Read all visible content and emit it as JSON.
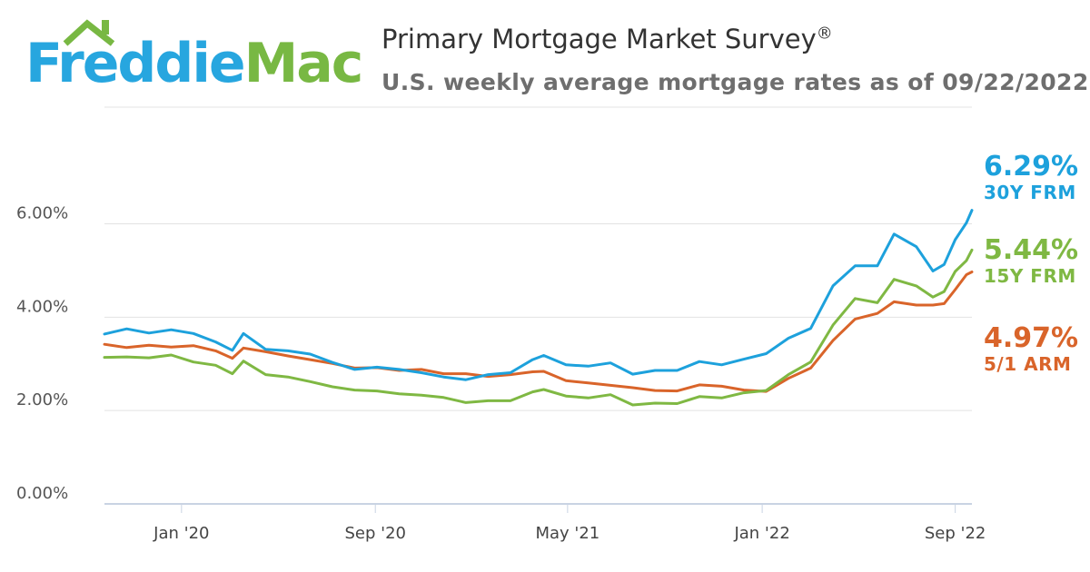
{
  "brand": {
    "name_part1": "Freddie",
    "name_part2": "Mac"
  },
  "header": {
    "title": "Primary Mortgage Market Survey",
    "title_mark": "®",
    "subtitle": "U.S. weekly average mortgage rates as of 09/22/2022"
  },
  "colors": {
    "frm30": "#1da1dc",
    "frm15": "#7fb843",
    "arm51": "#d9642a",
    "grid": "#e3e3e3",
    "axis": "#c9d3e3",
    "logo_blue": "#27a6df",
    "logo_green": "#78b843"
  },
  "chart_data": {
    "type": "line",
    "title": "Primary Mortgage Market Survey",
    "subtitle": "U.S. weekly average mortgage rates as of 09/22/2022",
    "x_range": [
      "2019-09-26",
      "2022-09-22"
    ],
    "x_ticks": [
      {
        "date": "2020-01-01",
        "label": "Jan '20"
      },
      {
        "date": "2020-09-01",
        "label": "Sep '20"
      },
      {
        "date": "2021-05-01",
        "label": "May '21"
      },
      {
        "date": "2022-01-01",
        "label": "Jan '22"
      },
      {
        "date": "2022-09-01",
        "label": "Sep '22"
      }
    ],
    "y_ticks": [
      {
        "value": 0,
        "label": "0.00%"
      },
      {
        "value": 2,
        "label": "2.00%"
      },
      {
        "value": 4,
        "label": "4.00%"
      },
      {
        "value": 6,
        "label": "6.00%"
      }
    ],
    "ylim": [
      0,
      8.5
    ],
    "grid": true,
    "legend": "right",
    "series": [
      {
        "key": "frm30",
        "name": "30Y FRM",
        "last_label": "6.29%",
        "points": [
          [
            "2019-09-26",
            3.64
          ],
          [
            "2019-10-24",
            3.75
          ],
          [
            "2019-11-21",
            3.66
          ],
          [
            "2019-12-19",
            3.73
          ],
          [
            "2020-01-16",
            3.65
          ],
          [
            "2020-02-13",
            3.47
          ],
          [
            "2020-03-05",
            3.29
          ],
          [
            "2020-03-19",
            3.65
          ],
          [
            "2020-04-16",
            3.31
          ],
          [
            "2020-05-14",
            3.28
          ],
          [
            "2020-06-11",
            3.21
          ],
          [
            "2020-07-09",
            3.03
          ],
          [
            "2020-08-06",
            2.88
          ],
          [
            "2020-09-03",
            2.93
          ],
          [
            "2020-10-01",
            2.88
          ],
          [
            "2020-10-29",
            2.81
          ],
          [
            "2020-11-26",
            2.72
          ],
          [
            "2020-12-24",
            2.66
          ],
          [
            "2021-01-21",
            2.77
          ],
          [
            "2021-02-18",
            2.81
          ],
          [
            "2021-03-18",
            3.09
          ],
          [
            "2021-04-01",
            3.18
          ],
          [
            "2021-04-29",
            2.98
          ],
          [
            "2021-05-27",
            2.95
          ],
          [
            "2021-06-24",
            3.02
          ],
          [
            "2021-07-22",
            2.78
          ],
          [
            "2021-08-19",
            2.86
          ],
          [
            "2021-09-16",
            2.86
          ],
          [
            "2021-10-14",
            3.05
          ],
          [
            "2021-11-11",
            2.98
          ],
          [
            "2021-12-09",
            3.1
          ],
          [
            "2022-01-06",
            3.22
          ],
          [
            "2022-02-03",
            3.55
          ],
          [
            "2022-03-03",
            3.76
          ],
          [
            "2022-03-31",
            4.67
          ],
          [
            "2022-04-28",
            5.1
          ],
          [
            "2022-05-26",
            5.1
          ],
          [
            "2022-06-16",
            5.78
          ],
          [
            "2022-07-14",
            5.51
          ],
          [
            "2022-08-04",
            4.99
          ],
          [
            "2022-08-18",
            5.13
          ],
          [
            "2022-09-01",
            5.66
          ],
          [
            "2022-09-15",
            6.02
          ],
          [
            "2022-09-22",
            6.29
          ]
        ]
      },
      {
        "key": "frm15",
        "name": "15Y FRM",
        "last_label": "5.44%",
        "points": [
          [
            "2019-09-26",
            3.14
          ],
          [
            "2019-10-24",
            3.15
          ],
          [
            "2019-11-21",
            3.13
          ],
          [
            "2019-12-19",
            3.19
          ],
          [
            "2020-01-16",
            3.04
          ],
          [
            "2020-02-13",
            2.97
          ],
          [
            "2020-03-05",
            2.79
          ],
          [
            "2020-03-19",
            3.06
          ],
          [
            "2020-04-16",
            2.77
          ],
          [
            "2020-05-14",
            2.72
          ],
          [
            "2020-06-11",
            2.62
          ],
          [
            "2020-07-09",
            2.51
          ],
          [
            "2020-08-06",
            2.44
          ],
          [
            "2020-09-03",
            2.42
          ],
          [
            "2020-10-01",
            2.36
          ],
          [
            "2020-10-29",
            2.33
          ],
          [
            "2020-11-26",
            2.28
          ],
          [
            "2020-12-24",
            2.17
          ],
          [
            "2021-01-21",
            2.21
          ],
          [
            "2021-02-18",
            2.21
          ],
          [
            "2021-03-18",
            2.4
          ],
          [
            "2021-04-01",
            2.45
          ],
          [
            "2021-04-29",
            2.31
          ],
          [
            "2021-05-27",
            2.27
          ],
          [
            "2021-06-24",
            2.34
          ],
          [
            "2021-07-22",
            2.12
          ],
          [
            "2021-08-19",
            2.16
          ],
          [
            "2021-09-16",
            2.15
          ],
          [
            "2021-10-14",
            2.3
          ],
          [
            "2021-11-11",
            2.27
          ],
          [
            "2021-12-09",
            2.38
          ],
          [
            "2022-01-06",
            2.43
          ],
          [
            "2022-02-03",
            2.77
          ],
          [
            "2022-03-03",
            3.04
          ],
          [
            "2022-03-31",
            3.83
          ],
          [
            "2022-04-28",
            4.4
          ],
          [
            "2022-05-26",
            4.31
          ],
          [
            "2022-06-16",
            4.81
          ],
          [
            "2022-07-14",
            4.67
          ],
          [
            "2022-08-04",
            4.43
          ],
          [
            "2022-08-18",
            4.55
          ],
          [
            "2022-09-01",
            4.98
          ],
          [
            "2022-09-15",
            5.21
          ],
          [
            "2022-09-22",
            5.44
          ]
        ]
      },
      {
        "key": "arm51",
        "name": "5/1 ARM",
        "last_label": "4.97%",
        "points": [
          [
            "2019-09-26",
            3.42
          ],
          [
            "2019-10-24",
            3.35
          ],
          [
            "2019-11-21",
            3.4
          ],
          [
            "2019-12-19",
            3.36
          ],
          [
            "2020-01-16",
            3.39
          ],
          [
            "2020-02-13",
            3.28
          ],
          [
            "2020-03-05",
            3.12
          ],
          [
            "2020-03-19",
            3.34
          ],
          [
            "2020-04-16",
            3.26
          ],
          [
            "2020-05-14",
            3.17
          ],
          [
            "2020-06-11",
            3.09
          ],
          [
            "2020-07-09",
            3.01
          ],
          [
            "2020-08-06",
            2.91
          ],
          [
            "2020-09-03",
            2.92
          ],
          [
            "2020-10-01",
            2.86
          ],
          [
            "2020-10-29",
            2.88
          ],
          [
            "2020-11-26",
            2.79
          ],
          [
            "2020-12-24",
            2.79
          ],
          [
            "2021-01-21",
            2.73
          ],
          [
            "2021-02-18",
            2.77
          ],
          [
            "2021-03-18",
            2.83
          ],
          [
            "2021-04-01",
            2.84
          ],
          [
            "2021-04-29",
            2.64
          ],
          [
            "2021-05-27",
            2.59
          ],
          [
            "2021-06-24",
            2.54
          ],
          [
            "2021-07-22",
            2.49
          ],
          [
            "2021-08-19",
            2.43
          ],
          [
            "2021-09-16",
            2.42
          ],
          [
            "2021-10-14",
            2.55
          ],
          [
            "2021-11-11",
            2.52
          ],
          [
            "2021-12-09",
            2.44
          ],
          [
            "2022-01-06",
            2.41
          ],
          [
            "2022-02-03",
            2.69
          ],
          [
            "2022-03-03",
            2.91
          ],
          [
            "2022-03-31",
            3.5
          ],
          [
            "2022-04-28",
            3.96
          ],
          [
            "2022-05-26",
            4.08
          ],
          [
            "2022-06-16",
            4.33
          ],
          [
            "2022-07-14",
            4.26
          ],
          [
            "2022-08-04",
            4.26
          ],
          [
            "2022-08-18",
            4.29
          ],
          [
            "2022-09-01",
            4.59
          ],
          [
            "2022-09-15",
            4.91
          ],
          [
            "2022-09-22",
            4.97
          ]
        ]
      }
    ]
  }
}
